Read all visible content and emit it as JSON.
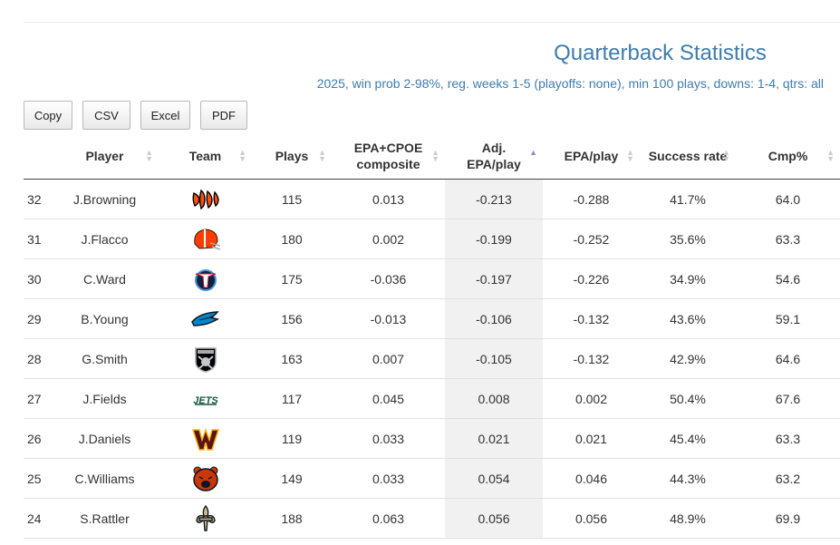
{
  "title": "Quarterback Statistics",
  "subtitle": "2025, win prob 2-98%, reg. weeks 1-5 (playoffs: none), min 100 plays, downs: 1-4, qtrs: all",
  "buttons": [
    "Copy",
    "CSV",
    "Excel",
    "PDF"
  ],
  "columns": [
    {
      "line1": "",
      "line2": ""
    },
    {
      "line1": "Player",
      "line2": ""
    },
    {
      "line1": "Team",
      "line2": ""
    },
    {
      "line1": "Plays",
      "line2": ""
    },
    {
      "line1": "EPA+CPOE",
      "line2": "composite"
    },
    {
      "line1": "Adj.",
      "line2": "EPA/play"
    },
    {
      "line1": "EPA/play",
      "line2": ""
    },
    {
      "line1": "Success rate",
      "line2": ""
    },
    {
      "line1": "Cmp%",
      "line2": ""
    }
  ],
  "rows": [
    {
      "rank": "32",
      "player": "J.Browning",
      "team_logo": "bengals-logo",
      "plays": "115",
      "epa_cpoe": "0.013",
      "adj_epa": "-0.213",
      "epa": "-0.288",
      "success": "41.7%",
      "cmp": "64.0"
    },
    {
      "rank": "31",
      "player": "J.Flacco",
      "team_logo": "browns-logo",
      "plays": "180",
      "epa_cpoe": "0.002",
      "adj_epa": "-0.199",
      "epa": "-0.252",
      "success": "35.6%",
      "cmp": "63.3"
    },
    {
      "rank": "30",
      "player": "C.Ward",
      "team_logo": "titans-logo",
      "plays": "175",
      "epa_cpoe": "-0.036",
      "adj_epa": "-0.197",
      "epa": "-0.226",
      "success": "34.9%",
      "cmp": "54.6"
    },
    {
      "rank": "29",
      "player": "B.Young",
      "team_logo": "panthers-logo",
      "plays": "156",
      "epa_cpoe": "-0.013",
      "adj_epa": "-0.106",
      "epa": "-0.132",
      "success": "43.6%",
      "cmp": "59.1"
    },
    {
      "rank": "28",
      "player": "G.Smith",
      "team_logo": "raiders-logo",
      "plays": "163",
      "epa_cpoe": "0.007",
      "adj_epa": "-0.105",
      "epa": "-0.132",
      "success": "42.9%",
      "cmp": "64.6"
    },
    {
      "rank": "27",
      "player": "J.Fields",
      "team_logo": "jets-logo",
      "plays": "117",
      "epa_cpoe": "0.045",
      "adj_epa": "0.008",
      "epa": "0.002",
      "success": "50.4%",
      "cmp": "67.6"
    },
    {
      "rank": "26",
      "player": "J.Daniels",
      "team_logo": "commanders-logo",
      "plays": "119",
      "epa_cpoe": "0.033",
      "adj_epa": "0.021",
      "epa": "0.021",
      "success": "45.4%",
      "cmp": "63.3"
    },
    {
      "rank": "25",
      "player": "C.Williams",
      "team_logo": "bears-logo",
      "plays": "149",
      "epa_cpoe": "0.033",
      "adj_epa": "0.054",
      "epa": "0.046",
      "success": "44.3%",
      "cmp": "63.2"
    },
    {
      "rank": "24",
      "player": "S.Rattler",
      "team_logo": "saints-logo",
      "plays": "188",
      "epa_cpoe": "0.063",
      "adj_epa": "0.056",
      "epa": "0.056",
      "success": "48.9%",
      "cmp": "69.9"
    }
  ],
  "colors": {
    "title": "#3d7cae",
    "sort_active": "#8a8ad0",
    "sorted_column_bg": "#f1f1f1"
  }
}
